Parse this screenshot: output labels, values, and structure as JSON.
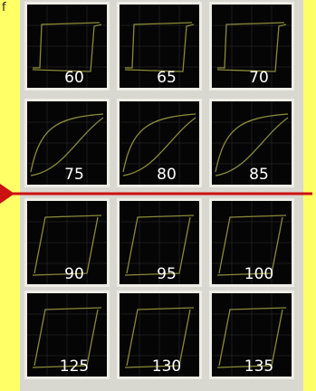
{
  "corner_label": "f",
  "panels": [
    {
      "label": "60"
    },
    {
      "label": "65"
    },
    {
      "label": "70"
    },
    {
      "label": "75"
    },
    {
      "label": "80"
    },
    {
      "label": "85"
    },
    {
      "label": "90"
    },
    {
      "label": "95"
    },
    {
      "label": "100"
    },
    {
      "label": "125"
    },
    {
      "label": "130"
    },
    {
      "label": "135"
    }
  ]
}
